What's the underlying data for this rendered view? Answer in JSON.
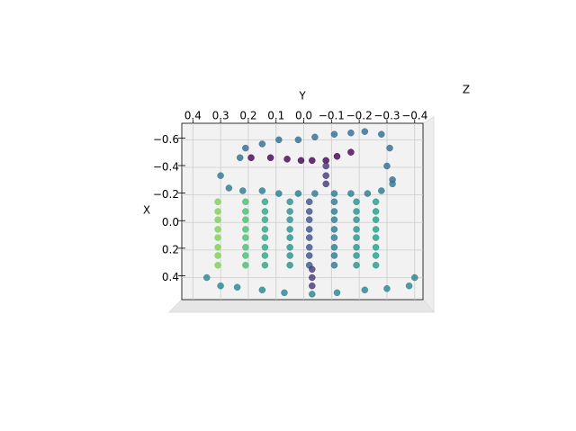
{
  "chart_data": {
    "type": "scatter",
    "xlabel": "Y",
    "ylabel": "X",
    "zlabel": "Z",
    "xlim": [
      0.44,
      -0.43
    ],
    "xticks": [
      0.4,
      0.3,
      0.2,
      0.1,
      {
        "value": 0,
        "label": "0.0"
      },
      {
        "value": -0.1,
        "label": "−0.1"
      },
      {
        "value": -0.2,
        "label": "−0.2"
      },
      {
        "value": -0.3,
        "label": "−0.3"
      },
      {
        "value": -0.4,
        "label": "−0.4"
      }
    ],
    "ylim": [
      -0.72,
      0.56
    ],
    "yticks": [
      {
        "value": -0.6,
        "label": "−0.6"
      },
      {
        "value": -0.4,
        "label": "−0.4"
      },
      {
        "value": -0.2,
        "label": "−0.2"
      },
      {
        "value": 0,
        "label": "0.0"
      },
      0.2,
      0.4
    ],
    "grid": true,
    "cmap": "viridis",
    "clim": [
      0,
      1
    ],
    "x": [
      0.23,
      0.21,
      0.15,
      0.09,
      0.02,
      -0.04,
      -0.11,
      -0.17,
      -0.22,
      -0.28,
      -0.31,
      -0.3,
      -0.32,
      0.19,
      0.12,
      0.06,
      0.01,
      -0.03,
      -0.08,
      -0.12,
      -0.17,
      -0.08,
      -0.08,
      -0.08,
      0.3,
      0.27,
      0.22,
      0.15,
      0.09,
      0.02,
      -0.04,
      -0.11,
      -0.17,
      -0.23,
      -0.28,
      -0.32,
      0.31,
      0.31,
      0.31,
      0.31,
      0.31,
      0.31,
      0.31,
      0.21,
      0.21,
      0.21,
      0.21,
      0.21,
      0.21,
      0.21,
      0.14,
      0.14,
      0.14,
      0.14,
      0.14,
      0.14,
      0.14,
      0.05,
      0.05,
      0.05,
      0.05,
      0.05,
      0.05,
      0.05,
      -0.02,
      -0.02,
      -0.02,
      -0.02,
      -0.02,
      -0.02,
      -0.02,
      -0.11,
      -0.11,
      -0.11,
      -0.11,
      -0.11,
      -0.11,
      -0.11,
      -0.19,
      -0.19,
      -0.19,
      -0.19,
      -0.19,
      -0.19,
      -0.19,
      -0.26,
      -0.26,
      -0.26,
      -0.26,
      -0.26,
      -0.26,
      -0.26,
      0.31,
      0.21,
      0.14,
      0.05,
      -0.02,
      -0.11,
      -0.19,
      -0.26,
      0.35,
      0.3,
      0.24,
      0.15,
      0.07,
      -0.03,
      -0.12,
      -0.22,
      -0.3,
      -0.38,
      -0.4,
      -0.03,
      -0.03,
      -0.03
    ],
    "y": [
      -0.47,
      -0.54,
      -0.57,
      -0.6,
      -0.6,
      -0.62,
      -0.64,
      -0.65,
      -0.66,
      -0.64,
      -0.54,
      -0.41,
      -0.31,
      -0.47,
      -0.47,
      -0.46,
      -0.45,
      -0.45,
      -0.45,
      -0.48,
      -0.51,
      -0.41,
      -0.34,
      -0.28,
      -0.34,
      -0.25,
      -0.23,
      -0.23,
      -0.21,
      -0.21,
      -0.21,
      -0.21,
      -0.21,
      -0.21,
      -0.23,
      -0.28,
      -0.15,
      -0.08,
      -0.02,
      0.05,
      0.11,
      0.18,
      0.24,
      -0.15,
      -0.08,
      -0.02,
      0.05,
      0.11,
      0.18,
      0.24,
      -0.15,
      -0.08,
      -0.02,
      0.05,
      0.11,
      0.18,
      0.24,
      -0.15,
      -0.08,
      -0.02,
      0.05,
      0.11,
      0.18,
      0.24,
      -0.15,
      -0.08,
      -0.02,
      0.05,
      0.11,
      0.18,
      0.24,
      -0.15,
      -0.08,
      -0.02,
      0.05,
      0.11,
      0.18,
      0.24,
      -0.15,
      -0.08,
      -0.02,
      0.05,
      0.11,
      0.18,
      0.24,
      -0.15,
      -0.08,
      -0.02,
      0.05,
      0.11,
      0.18,
      0.24,
      0.31,
      0.31,
      0.31,
      0.31,
      0.31,
      0.31,
      0.31,
      0.31,
      0.4,
      0.46,
      0.47,
      0.49,
      0.51,
      0.52,
      0.51,
      0.49,
      0.48,
      0.46,
      0.4,
      0.34,
      0.4,
      0.46
    ],
    "z": [
      0.35,
      0.35,
      0.35,
      0.35,
      0.35,
      0.35,
      0.35,
      0.35,
      0.35,
      0.35,
      0.35,
      0.35,
      0.35,
      0,
      0,
      0,
      0,
      0,
      0,
      0,
      0,
      0.15,
      0.15,
      0.15,
      0.4,
      0.4,
      0.4,
      0.4,
      0.4,
      0.4,
      0.4,
      0.4,
      0.4,
      0.4,
      0.4,
      0.4,
      0.8,
      0.8,
      0.8,
      0.8,
      0.8,
      0.8,
      0.8,
      0.7,
      0.7,
      0.7,
      0.7,
      0.7,
      0.7,
      0.7,
      0.6,
      0.6,
      0.6,
      0.6,
      0.6,
      0.6,
      0.6,
      0.5,
      0.5,
      0.5,
      0.5,
      0.5,
      0.5,
      0.5,
      0.25,
      0.25,
      0.25,
      0.25,
      0.25,
      0.25,
      0.25,
      0.4,
      0.4,
      0.4,
      0.4,
      0.4,
      0.4,
      0.4,
      0.5,
      0.5,
      0.5,
      0.5,
      0.5,
      0.5,
      0.5,
      0.55,
      0.55,
      0.55,
      0.55,
      0.55,
      0.55,
      0.55,
      0.8,
      0.7,
      0.6,
      0.5,
      0.25,
      0.4,
      0.5,
      0.55,
      0.45,
      0.45,
      0.45,
      0.45,
      0.45,
      0.45,
      0.45,
      0.45,
      0.45,
      0.45,
      0.45,
      0.15,
      0.15,
      0.15
    ]
  }
}
